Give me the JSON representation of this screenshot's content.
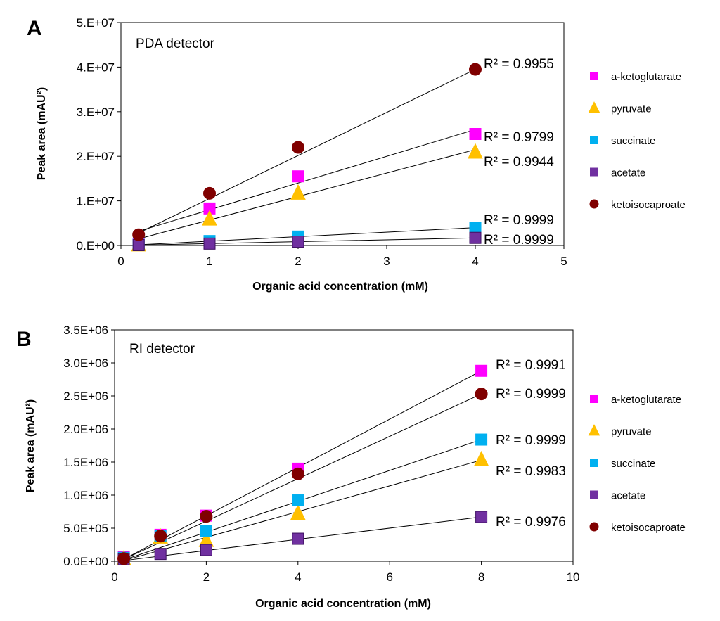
{
  "chart_data": [
    {
      "type": "scatter",
      "panel_letter": "A",
      "title": "PDA detector",
      "xlabel": "Organic acid concentration (mM)",
      "ylabel": "Peak area (mAU²)",
      "xlim": [
        0,
        5
      ],
      "ylim": [
        0,
        50000000
      ],
      "xticks": [
        0,
        1,
        2,
        3,
        4,
        5
      ],
      "xtick_labels": [
        "0",
        "1",
        "2",
        "3",
        "4",
        "5"
      ],
      "yticks": [
        0,
        10000000,
        20000000,
        30000000,
        40000000,
        50000000
      ],
      "ytick_labels": [
        "0.E+00",
        "1.E+07",
        "2.E+07",
        "3.E+07",
        "4.E+07",
        "5.E+07"
      ],
      "legend_position": "right",
      "grid": false,
      "series": [
        {
          "name": "a-ketoglutarate",
          "marker": "square",
          "color": "#ff00ff",
          "stroke": "#ff00ff",
          "x": [
            0.2,
            1,
            2,
            4
          ],
          "y": [
            300000,
            8300000,
            15500000,
            25000000
          ],
          "fit": [
            [
              0.2,
              3200000
            ],
            [
              4,
              26000000
            ]
          ],
          "r2": "R² = 0.9799"
        },
        {
          "name": "pyruvate",
          "marker": "triangle",
          "color": "#ffc000",
          "stroke": "#ffc000",
          "x": [
            0.2,
            1,
            2,
            4
          ],
          "y": [
            200000,
            6000000,
            11800000,
            21000000
          ],
          "fit": [
            [
              0.2,
              1500000
            ],
            [
              4,
              21500000
            ]
          ],
          "r2": "R² = 0.9944"
        },
        {
          "name": "succinate",
          "marker": "square",
          "color": "#00b0f0",
          "stroke": "#00b0f0",
          "x": [
            0.2,
            1,
            2,
            4
          ],
          "y": [
            150000,
            1000000,
            2000000,
            4000000
          ],
          "fit": [
            [
              0.2,
              150000
            ],
            [
              4,
              4000000
            ]
          ],
          "r2": "R² = 0.9999"
        },
        {
          "name": "acetate",
          "marker": "square",
          "color": "#7030a0",
          "stroke": "#3d1060",
          "x": [
            0.2,
            1,
            2,
            4
          ],
          "y": [
            80000,
            420000,
            850000,
            1700000
          ],
          "fit": [
            [
              0.2,
              80000
            ],
            [
              4,
              1700000
            ]
          ],
          "r2": "R² = 0.9999"
        },
        {
          "name": "ketoisocaproate",
          "marker": "circle",
          "color": "#800000",
          "stroke": "#800000",
          "x": [
            0.2,
            1,
            2,
            4
          ],
          "y": [
            2400000,
            11700000,
            22000000,
            39500000
          ],
          "fit": [
            [
              0.2,
              2800000
            ],
            [
              4,
              39500000
            ]
          ],
          "r2": "R² = 0.9955"
        }
      ]
    },
    {
      "type": "scatter",
      "panel_letter": "B",
      "title": "RI detector",
      "xlabel": "Organic acid concentration (mM)",
      "ylabel": "Peak area (mAU²)",
      "xlim": [
        0,
        10
      ],
      "ylim": [
        0,
        3500000
      ],
      "xticks": [
        0,
        2,
        4,
        6,
        8,
        10
      ],
      "xtick_labels": [
        "0",
        "2",
        "4",
        "6",
        "8",
        "10"
      ],
      "yticks": [
        0,
        500000,
        1000000,
        1500000,
        2000000,
        2500000,
        3000000,
        3500000
      ],
      "ytick_labels": [
        "0.0E+00",
        "5.0E+05",
        "1.0E+06",
        "1.5E+06",
        "2.0E+06",
        "2.5E+06",
        "3.0E+06",
        "3.5E+06"
      ],
      "legend_position": "right",
      "grid": false,
      "series": [
        {
          "name": "a-ketoglutarate",
          "marker": "square",
          "color": "#ff00ff",
          "stroke": "#ff00ff",
          "x": [
            0.2,
            1,
            2,
            4,
            8
          ],
          "y": [
            60000,
            400000,
            690000,
            1400000,
            2880000
          ],
          "fit": [
            [
              0.2,
              30000
            ],
            [
              8,
              2880000
            ]
          ],
          "r2": "R² = 0.9991"
        },
        {
          "name": "pyruvate",
          "marker": "triangle",
          "color": "#ffc000",
          "stroke": "#ffc000",
          "x": [
            0.2,
            1,
            2,
            4,
            8
          ],
          "y": [
            40000,
            370000,
            320000,
            730000,
            1540000
          ],
          "fit": [
            [
              0.2,
              10000
            ],
            [
              8,
              1530000
            ]
          ],
          "r2": "R² = 0.9983"
        },
        {
          "name": "succinate",
          "marker": "square",
          "color": "#00b0f0",
          "stroke": "#00b0f0",
          "x": [
            0.2,
            1,
            2,
            4,
            8
          ],
          "y": [
            50000,
            380000,
            460000,
            920000,
            1840000
          ],
          "fit": [
            [
              0.2,
              20000
            ],
            [
              8,
              1840000
            ]
          ],
          "r2": "R² = 0.9999"
        },
        {
          "name": "acetate",
          "marker": "square",
          "color": "#7030a0",
          "stroke": "#3d1060",
          "x": [
            0.2,
            1,
            2,
            4,
            8
          ],
          "y": [
            30000,
            110000,
            170000,
            340000,
            670000
          ],
          "fit": [
            [
              0.2,
              10000
            ],
            [
              8,
              670000
            ]
          ],
          "r2": "R² = 0.9976"
        },
        {
          "name": "ketoisocaproate",
          "marker": "circle",
          "color": "#800000",
          "stroke": "#800000",
          "x": [
            0.2,
            1,
            2,
            4,
            8
          ],
          "y": [
            40000,
            380000,
            680000,
            1320000,
            2530000
          ],
          "fit": [
            [
              0.2,
              30000
            ],
            [
              8,
              2530000
            ]
          ],
          "r2": "R² = 0.9999"
        }
      ]
    }
  ]
}
